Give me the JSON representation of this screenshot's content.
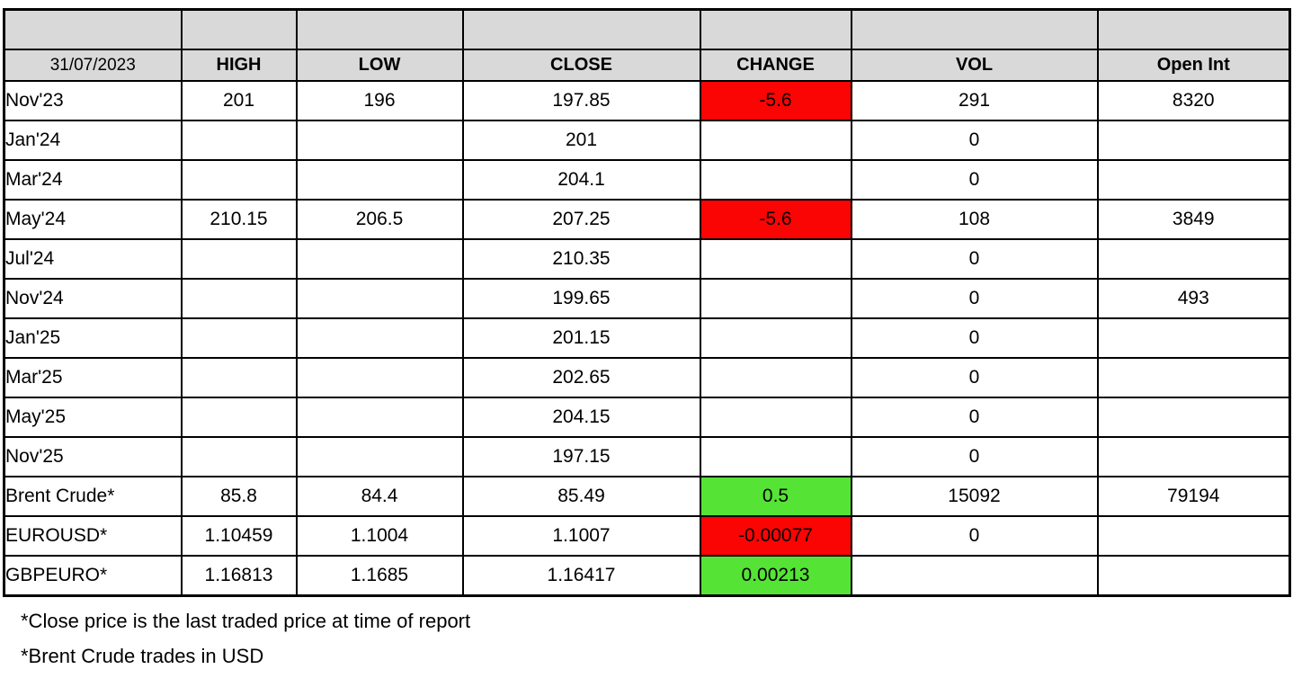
{
  "table": {
    "date_header": "31/07/2023",
    "columns": [
      "HIGH",
      "LOW",
      "CLOSE",
      "CHANGE",
      "VOL",
      "Open Int"
    ],
    "rows": [
      {
        "label": "Nov'23",
        "high": "201",
        "low": "196",
        "close": "197.85",
        "change": "-5.6",
        "change_color": "red",
        "vol": "291",
        "open_int": "8320"
      },
      {
        "label": "Jan'24",
        "high": "",
        "low": "",
        "close": "201",
        "change": "",
        "change_color": "",
        "vol": "0",
        "open_int": ""
      },
      {
        "label": "Mar'24",
        "high": "",
        "low": "",
        "close": "204.1",
        "change": "",
        "change_color": "",
        "vol": "0",
        "open_int": ""
      },
      {
        "label": "May'24",
        "high": "210.15",
        "low": "206.5",
        "close": "207.25",
        "change": "-5.6",
        "change_color": "red",
        "vol": "108",
        "open_int": "3849"
      },
      {
        "label": "Jul'24",
        "high": "",
        "low": "",
        "close": "210.35",
        "change": "",
        "change_color": "",
        "vol": "0",
        "open_int": ""
      },
      {
        "label": "Nov'24",
        "high": "",
        "low": "",
        "close": "199.65",
        "change": "",
        "change_color": "",
        "vol": "0",
        "open_int": "493"
      },
      {
        "label": "Jan'25",
        "high": "",
        "low": "",
        "close": "201.15",
        "change": "",
        "change_color": "",
        "vol": "0",
        "open_int": ""
      },
      {
        "label": "Mar'25",
        "high": "",
        "low": "",
        "close": "202.65",
        "change": "",
        "change_color": "",
        "vol": "0",
        "open_int": ""
      },
      {
        "label": "May'25",
        "high": "",
        "low": "",
        "close": "204.15",
        "change": "",
        "change_color": "",
        "vol": "0",
        "open_int": ""
      },
      {
        "label": "Nov'25",
        "high": "",
        "low": "",
        "close": "197.15",
        "change": "",
        "change_color": "",
        "vol": "0",
        "open_int": ""
      },
      {
        "label": "Brent Crude*",
        "high": "85.8",
        "low": "84.4",
        "close": "85.49",
        "change": "0.5",
        "change_color": "green",
        "vol": "15092",
        "open_int": "79194"
      },
      {
        "label": "EUROUSD*",
        "high": "1.10459",
        "low": "1.1004",
        "close": "1.1007",
        "change": "-0.00077",
        "change_color": "red",
        "vol": "0",
        "open_int": ""
      },
      {
        "label": "GBPEURO*",
        "high": "1.16813",
        "low": "1.1685",
        "close": "1.16417",
        "change": "0.00213",
        "change_color": "green",
        "vol": "",
        "open_int": ""
      }
    ],
    "footnotes": [
      "*Close price is the last traded price at time of report",
      "*Brent Crude trades in USD"
    ],
    "colors": {
      "header_bg": "#d9d9d9",
      "negative_bg": "#fb0404",
      "positive_bg": "#55e336",
      "border": "#000000"
    }
  }
}
